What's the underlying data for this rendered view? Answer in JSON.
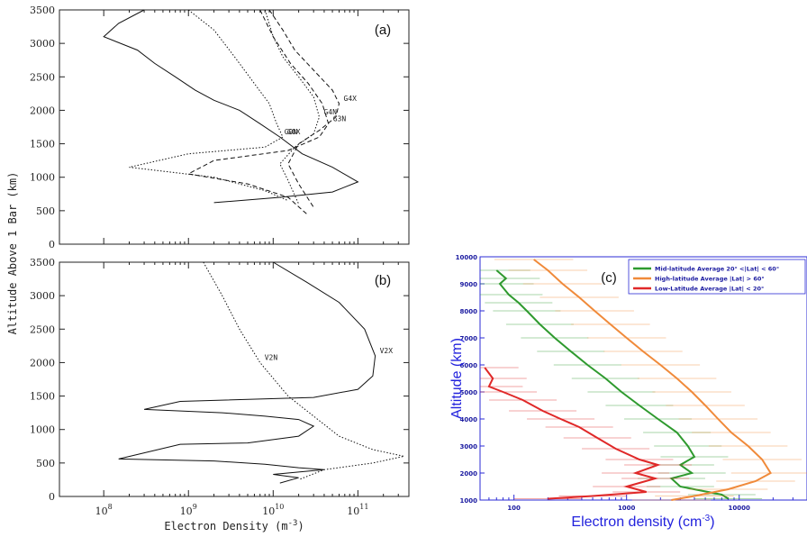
{
  "chart_data": [
    {
      "panel": "(a)",
      "type": "line",
      "xscale": "log",
      "xlim": [
        30000000.0,
        400000000000.0
      ],
      "ylim": [
        0,
        3500
      ],
      "ylabel": "Altitude Above 1 Bar (km)",
      "yticks": [
        "0",
        "500",
        "1000",
        "1500",
        "2000",
        "2500",
        "3000",
        "3500"
      ],
      "series": [
        {
          "name": "G0N",
          "style": "solid",
          "points": [
            [
              300000000.0,
              3500
            ],
            [
              150000000.0,
              3300
            ],
            [
              100000000.0,
              3100
            ],
            [
              250000000.0,
              2900
            ],
            [
              400000000.0,
              2700
            ],
            [
              700000000.0,
              2500
            ],
            [
              1200000000.0,
              2300
            ],
            [
              2000000000.0,
              2150
            ],
            [
              4000000000.0,
              2000
            ],
            [
              7000000000.0,
              1800
            ],
            [
              12000000000.0,
              1600
            ],
            [
              22000000000.0,
              1350
            ],
            [
              50000000000.0,
              1150
            ],
            [
              100000000000.0,
              930
            ],
            [
              50000000000.0,
              780
            ],
            [
              12000000000.0,
              700
            ],
            [
              2000000000.0,
              620
            ]
          ]
        },
        {
          "name": "G0X",
          "style": "dotted",
          "points": [
            [
              1000000000.0,
              3500
            ],
            [
              2000000000.0,
              3200
            ],
            [
              3500000000.0,
              2800
            ],
            [
              6000000000.0,
              2400
            ],
            [
              9000000000.0,
              2100
            ],
            [
              11000000000.0,
              1800
            ],
            [
              13000000000.0,
              1600
            ],
            [
              8000000000.0,
              1450
            ],
            [
              1000000000.0,
              1350
            ],
            [
              200000000.0,
              1150
            ],
            [
              2000000000.0,
              1000
            ],
            [
              8000000000.0,
              800
            ],
            [
              15000000000.0,
              650
            ]
          ]
        },
        {
          "name": "G3N",
          "style": "dashed",
          "points": [
            [
              7000000000.0,
              3500
            ],
            [
              10000000000.0,
              3100
            ],
            [
              16000000000.0,
              2700
            ],
            [
              26000000000.0,
              2400
            ],
            [
              38000000000.0,
              2100
            ],
            [
              45000000000.0,
              1800
            ],
            [
              35000000000.0,
              1600
            ],
            [
              15000000000.0,
              1400
            ],
            [
              2000000000.0,
              1250
            ],
            [
              1000000000.0,
              1050
            ],
            [
              5000000000.0,
              900
            ],
            [
              15000000000.0,
              700
            ],
            [
              25000000000.0,
              450
            ]
          ]
        },
        {
          "name": "G4N",
          "style": "dotted",
          "points": [
            [
              8000000000.0,
              3500
            ],
            [
              10000000000.0,
              3100
            ],
            [
              13000000000.0,
              2800
            ],
            [
              20000000000.0,
              2500
            ],
            [
              30000000000.0,
              2200
            ],
            [
              35000000000.0,
              1900
            ],
            [
              30000000000.0,
              1650
            ],
            [
              18000000000.0,
              1450
            ],
            [
              12000000000.0,
              1200
            ],
            [
              15000000000.0,
              950
            ],
            [
              20000000000.0,
              600
            ]
          ]
        },
        {
          "name": "G4X",
          "style": "dashed",
          "points": [
            [
              9000000000.0,
              3500
            ],
            [
              13000000000.0,
              3200
            ],
            [
              18000000000.0,
              2900
            ],
            [
              30000000000.0,
              2600
            ],
            [
              50000000000.0,
              2300
            ],
            [
              60000000000.0,
              2100
            ],
            [
              55000000000.0,
              1900
            ],
            [
              35000000000.0,
              1700
            ],
            [
              20000000000.0,
              1500
            ],
            [
              15000000000.0,
              1200
            ],
            [
              20000000000.0,
              900
            ],
            [
              30000000000.0,
              550
            ]
          ]
        }
      ]
    },
    {
      "panel": "(b)",
      "type": "line",
      "xscale": "log",
      "xlim": [
        30000000.0,
        400000000000.0
      ],
      "ylim": [
        0,
        3500
      ],
      "xlabel": "Electron Density (m",
      "xlabel_sup": "-3",
      "xlabel_close": ")",
      "yticks": [
        "0",
        "500",
        "1000",
        "1500",
        "2000",
        "2500",
        "3000",
        "3500"
      ],
      "xticks": [
        {
          "base": "10",
          "exp": "8"
        },
        {
          "base": "10",
          "exp": "9"
        },
        {
          "base": "10",
          "exp": "10"
        },
        {
          "base": "10",
          "exp": "11"
        }
      ],
      "series": [
        {
          "name": "V2N",
          "style": "dotted",
          "points": [
            [
              1500000000.0,
              3500
            ],
            [
              2500000000.0,
              3000
            ],
            [
              4000000000.0,
              2500
            ],
            [
              7000000000.0,
              2000
            ],
            [
              15000000000.0,
              1500
            ],
            [
              30000000000.0,
              1200
            ],
            [
              60000000000.0,
              900
            ],
            [
              150000000000.0,
              700
            ],
            [
              350000000000.0,
              600
            ],
            [
              150000000000.0,
              500
            ],
            [
              40000000000.0,
              400
            ],
            [
              20000000000.0,
              250
            ]
          ]
        },
        {
          "name": "V2X",
          "style": "solid",
          "points": [
            [
              10000000000.0,
              3500
            ],
            [
              25000000000.0,
              3200
            ],
            [
              60000000000.0,
              2900
            ],
            [
              120000000000.0,
              2500
            ],
            [
              160000000000.0,
              2100
            ],
            [
              150000000000.0,
              1800
            ],
            [
              100000000000.0,
              1600
            ],
            [
              30000000000.0,
              1480
            ],
            [
              800000000.0,
              1420
            ],
            [
              300000000.0,
              1300
            ],
            [
              2500000000.0,
              1250
            ],
            [
              8000000000.0,
              1200
            ],
            [
              20000000000.0,
              1150
            ],
            [
              30000000000.0,
              1050
            ],
            [
              20000000000.0,
              900
            ],
            [
              5000000000.0,
              800
            ],
            [
              800000000.0,
              780
            ],
            [
              150000000.0,
              560
            ],
            [
              2000000000.0,
              530
            ],
            [
              8000000000.0,
              480
            ],
            [
              20000000000.0,
              430
            ],
            [
              40000000000.0,
              400
            ],
            [
              10000000000.0,
              330
            ],
            [
              20000000000.0,
              280
            ],
            [
              12000000000.0,
              200
            ]
          ]
        }
      ]
    },
    {
      "panel": "(c)",
      "type": "line",
      "xscale": "log",
      "xlim": [
        50,
        40000
      ],
      "ylim": [
        1000,
        10000
      ],
      "xlabel": "Electron density (cm",
      "xlabel_sup": "-3",
      "xlabel_close": ")",
      "ylabel": "Altitude (km)",
      "xticks": [
        "100",
        "1000",
        "10000"
      ],
      "yticks": [
        "1000",
        "2000",
        "3000",
        "4000",
        "5000",
        "6000",
        "7000",
        "8000",
        "9000",
        "10000"
      ],
      "legend_position": "top-right",
      "series": [
        {
          "name": "Mid-latitude Average  20° <|Lat| < 60°",
          "color": "#2e9a2e",
          "points": [
            [
              70,
              9500
            ],
            [
              85,
              9200
            ],
            [
              75,
              9000
            ],
            [
              90,
              8600
            ],
            [
              110,
              8300
            ],
            [
              130,
              8000
            ],
            [
              170,
              7500
            ],
            [
              230,
              7000
            ],
            [
              320,
              6500
            ],
            [
              450,
              6000
            ],
            [
              650,
              5500
            ],
            [
              900,
              5000
            ],
            [
              1300,
              4500
            ],
            [
              1900,
              4000
            ],
            [
              2800,
              3500
            ],
            [
              3500,
              3000
            ],
            [
              4000,
              2600
            ],
            [
              3000,
              2300
            ],
            [
              3800,
              2000
            ],
            [
              2500,
              1800
            ],
            [
              3000,
              1500
            ],
            [
              7000,
              1200
            ],
            [
              8000,
              1050
            ]
          ]
        },
        {
          "name": "High-latitude Average |Lat| > 60°",
          "color": "#f08a3a",
          "points": [
            [
              150,
              9900
            ],
            [
              200,
              9500
            ],
            [
              270,
              9000
            ],
            [
              380,
              8500
            ],
            [
              520,
              8000
            ],
            [
              720,
              7500
            ],
            [
              1000,
              7000
            ],
            [
              1400,
              6500
            ],
            [
              2000,
              6000
            ],
            [
              2800,
              5500
            ],
            [
              3800,
              5000
            ],
            [
              5000,
              4500
            ],
            [
              6500,
              4000
            ],
            [
              8500,
              3500
            ],
            [
              12000,
              3000
            ],
            [
              16000,
              2500
            ],
            [
              19000,
              2000
            ],
            [
              14000,
              1700
            ],
            [
              8000,
              1400
            ],
            [
              4000,
              1150
            ],
            [
              2500,
              1000
            ]
          ]
        },
        {
          "name": "Low-Latitude Average |Lat| < 20°",
          "color": "#e02828",
          "points": [
            [
              55,
              5900
            ],
            [
              65,
              5500
            ],
            [
              60,
              5200
            ],
            [
              80,
              5000
            ],
            [
              120,
              4700
            ],
            [
              180,
              4300
            ],
            [
              260,
              4000
            ],
            [
              380,
              3700
            ],
            [
              550,
              3300
            ],
            [
              800,
              2900
            ],
            [
              1300,
              2500
            ],
            [
              1900,
              2300
            ],
            [
              1200,
              2000
            ],
            [
              1800,
              1800
            ],
            [
              1000,
              1500
            ],
            [
              1500,
              1300
            ],
            [
              500,
              1150
            ],
            [
              200,
              1050
            ]
          ]
        }
      ]
    }
  ]
}
